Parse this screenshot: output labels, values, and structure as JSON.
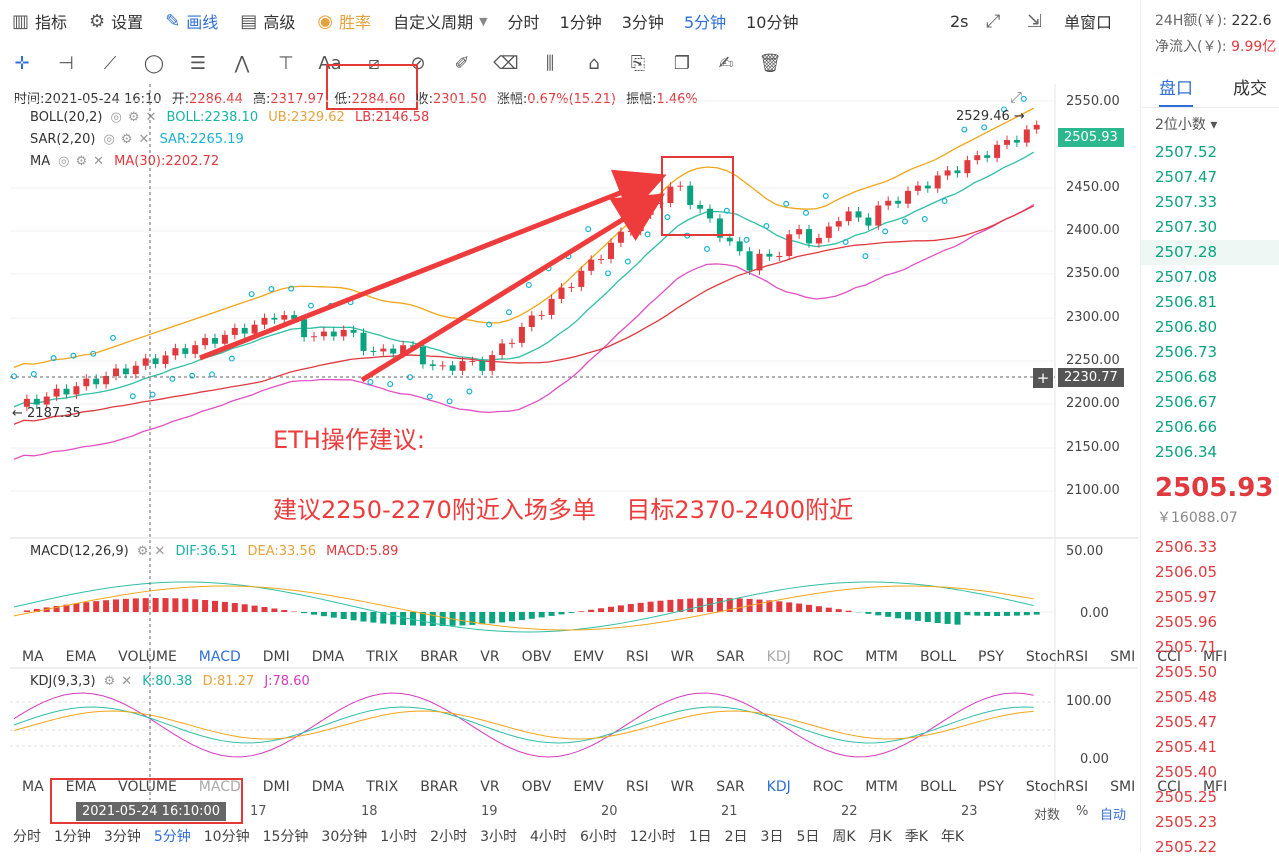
{
  "toolbar": {
    "indicator": "指标",
    "settings": "设置",
    "draw": "画线",
    "advanced": "高级",
    "winrate": "胜率",
    "custom_period": "自定义周期",
    "periods": [
      "分时",
      "1分钟",
      "3分钟",
      "5分钟",
      "10分钟"
    ],
    "active_period": "5分钟",
    "refresh": "2s",
    "single_window": "单窗口"
  },
  "info": {
    "time_label": "时间:",
    "time": "2021-05-24 16:10",
    "open_label": "开:",
    "open": "2286.44",
    "high_label": "高:",
    "high": "2317.97",
    "low_label": "低:",
    "low": "2284.60",
    "close_label": "收:",
    "close": "2301.50",
    "change_label": "涨幅:",
    "change": "0.67%(15.21)",
    "amp_label": "振幅:",
    "amp": "1.46%"
  },
  "indicators": {
    "boll": {
      "name": "BOLL(20,2)",
      "mid": "BOLL:2238.10",
      "ub": "UB:2329.62",
      "lb": "LB:2146.58"
    },
    "sar": {
      "name": "SAR(2,20)",
      "val": "SAR:2265.19"
    },
    "ma": {
      "name": "MA",
      "val": "MA(30):2202.72"
    },
    "macd": {
      "name": "MACD(12,26,9)",
      "dif": "DIF:36.51",
      "dea": "DEA:33.56",
      "macd": "MACD:5.89"
    },
    "kdj": {
      "name": "KDJ(9,3,3)",
      "k": "K:80.38",
      "d": "D:81.27",
      "j": "J:78.60"
    }
  },
  "price_axis": [
    "2550.00",
    "2500.00",
    "2450.00",
    "2400.00",
    "2350.00",
    "2300.00",
    "2250.00",
    "2200.00",
    "2150.00",
    "2100.00"
  ],
  "macd_axis": [
    "50.00",
    "0.00"
  ],
  "kdj_axis": [
    "100.00",
    "0.00"
  ],
  "tags": {
    "current": "2505.93",
    "crosshair": "2230.77",
    "high_mark": "2529.46",
    "low_mark": "2187.35"
  },
  "annotation": {
    "title": "ETH操作建议:",
    "advice": "建议2250-2270附近入场多单    目标2370-2400附近"
  },
  "indicator_tabs": [
    "MA",
    "EMA",
    "VOLUME",
    "MACD",
    "DMI",
    "DMA",
    "TRIX",
    "BRAR",
    "VR",
    "OBV",
    "EMV",
    "RSI",
    "WR",
    "SAR",
    "KDJ",
    "ROC",
    "MTM",
    "BOLL",
    "PSY",
    "StochRSI",
    "SMI",
    "CCI",
    "MFI"
  ],
  "dates": {
    "crosshair": "2021-05-24 16:10:00",
    "d17": "17",
    "d18": "18",
    "d19": "19",
    "d20": "20",
    "d21": "21",
    "d22": "22",
    "d23": "23"
  },
  "axis_mode": {
    "log": "对数",
    "pct": "%",
    "auto": "自动"
  },
  "bottom_periods": [
    "分时",
    "1分钟",
    "3分钟",
    "5分钟",
    "10分钟",
    "15分钟",
    "30分钟",
    "1小时",
    "2小时",
    "3小时",
    "4小时",
    "6小时",
    "12小时",
    "1日",
    "2日",
    "3日",
    "5日",
    "周K",
    "月K",
    "季K",
    "年K"
  ],
  "right": {
    "amount_label": "24H额(￥):",
    "amount": "222.6",
    "inflow_label": "净流入(￥):",
    "inflow": "9.99亿",
    "tab_book": "盘口",
    "tab_trades": "成交",
    "decimals": "2位小数",
    "asks": [
      "2507.52",
      "2507.47",
      "2507.33",
      "2507.30",
      "2507.28",
      "2507.08",
      "2506.81",
      "2506.80",
      "2506.73",
      "2506.68",
      "2506.67",
      "2506.66",
      "2506.34"
    ],
    "last_price": "2505.93",
    "last_cny": "￥16088.07",
    "bids": [
      "2506.33",
      "2506.05",
      "2505.97",
      "2505.96",
      "2505.71",
      "2505.50",
      "2505.48",
      "2505.47",
      "2505.41",
      "2505.40",
      "2505.25",
      "2505.23",
      "2505.22"
    ]
  }
}
